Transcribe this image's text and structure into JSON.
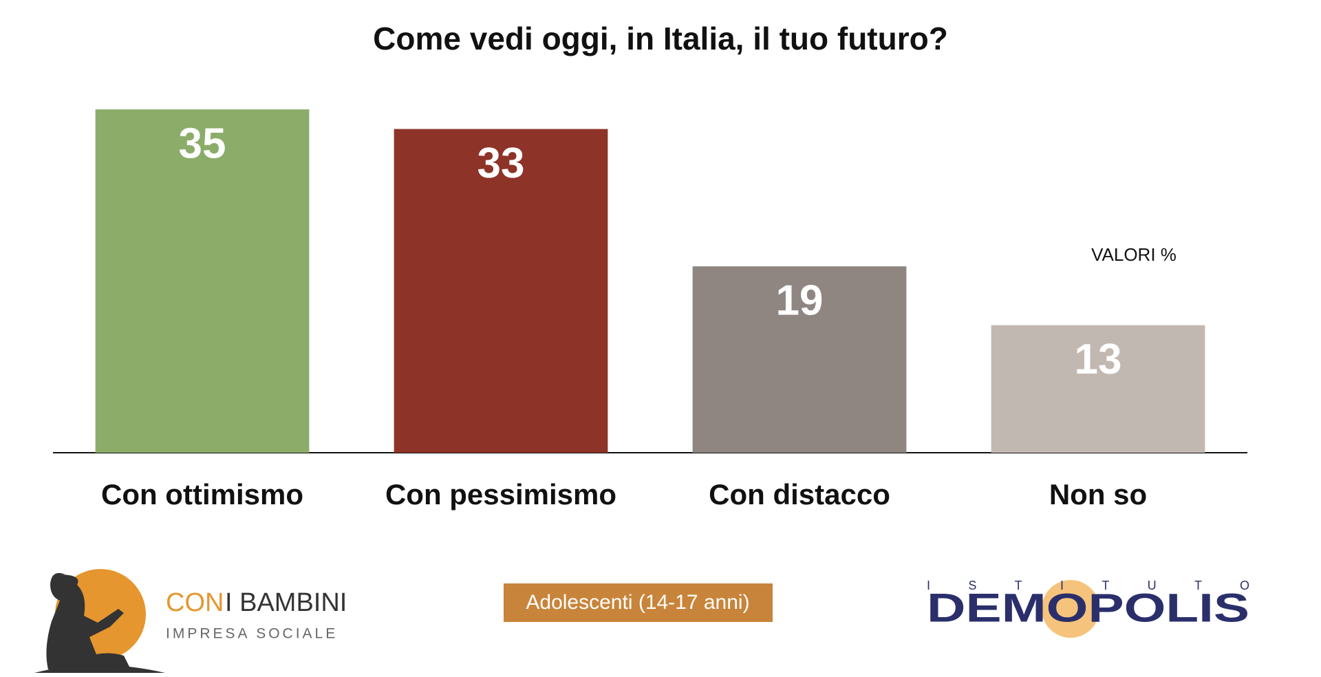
{
  "chart_data": {
    "type": "bar",
    "title": "Come vedi oggi, in Italia, il tuo futuro?",
    "categories": [
      "Con ottimismo",
      "Con pessimismo",
      "Con distacco",
      "Non so"
    ],
    "values": [
      35,
      33,
      19,
      13
    ],
    "colors": [
      "#8cad69",
      "#8e3328",
      "#8f8682",
      "#c2b8b2"
    ],
    "ylim": [
      0,
      35
    ],
    "note": "VALORI %",
    "subtitle": "Adolescenti (14-17 anni)",
    "logos": {
      "left": [
        "CON",
        "I BAMBINI",
        "IMPRESA SOCIALE"
      ],
      "right": [
        "ISTITUTO",
        "DEMOPOLIS"
      ]
    }
  }
}
